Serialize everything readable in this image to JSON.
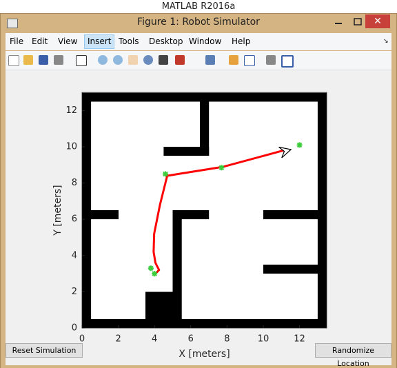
{
  "app_title": "MATLAB R2016a",
  "window": {
    "title": "Figure 1: Robot Simulator"
  },
  "menu": [
    "File",
    "Edit",
    "View",
    "Insert",
    "Tools",
    "Desktop",
    "Window",
    "Help"
  ],
  "chart_data": {
    "type": "line",
    "xlabel": "X [meters]",
    "ylabel": "Y [meters]",
    "xlim": [
      0,
      13.5
    ],
    "ylim": [
      0,
      13
    ],
    "xticks": [
      0,
      2,
      4,
      6,
      8,
      10,
      12
    ],
    "yticks": [
      0,
      2,
      4,
      6,
      8,
      10,
      12
    ],
    "path": {
      "color": "#ff0000",
      "x": [
        4.1,
        4.25,
        4.05,
        3.95,
        3.98,
        4.3,
        4.7,
        5.3,
        7.8,
        11.3
      ],
      "y": [
        3.05,
        3.2,
        3.6,
        4.2,
        5.2,
        6.8,
        8.4,
        8.5,
        8.9,
        9.85
      ]
    },
    "waypoints": {
      "color": "#3ccc3c",
      "x": [
        3.8,
        4.0,
        4.6,
        7.7,
        12.0
      ],
      "y": [
        3.3,
        3.0,
        8.5,
        8.85,
        10.1
      ]
    }
  },
  "buttons": [
    "Reset Simulation",
    "Randomize Location"
  ]
}
